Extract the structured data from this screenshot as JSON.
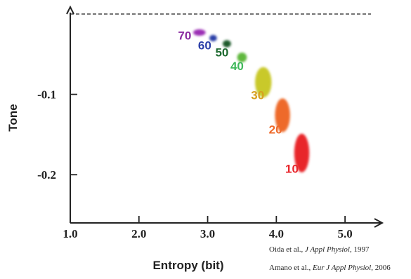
{
  "chart_data": {
    "type": "scatter",
    "title": "",
    "xlabel": "Entropy (bit)",
    "ylabel": "Tone",
    "xlim": [
      1.0,
      5.5
    ],
    "ylim": [
      -0.26,
      0.0
    ],
    "x_ticks": [
      "1.0",
      "2.0",
      "3.0",
      "4.0",
      "5.0"
    ],
    "y_ticks": [
      "-0.1",
      "-0.2"
    ],
    "reference_line": {
      "y": 0.0,
      "style": "dashed"
    },
    "points": [
      {
        "label": "70",
        "x": 2.88,
        "y": -0.023,
        "rx": 0.09,
        "ry": 0.004,
        "color": "#9b2fb5",
        "label_color": "#8a2aa0"
      },
      {
        "label": "60",
        "x": 3.08,
        "y": -0.03,
        "rx": 0.055,
        "ry": 0.004,
        "color": "#2b3fa8",
        "label_color": "#2b3fa8"
      },
      {
        "label": "50",
        "x": 3.28,
        "y": -0.037,
        "rx": 0.06,
        "ry": 0.0045,
        "color": "#1e5a2a",
        "label_color": "#1e6a30"
      },
      {
        "label": "40",
        "x": 3.5,
        "y": -0.054,
        "rx": 0.07,
        "ry": 0.006,
        "color": "#5fb83c",
        "label_color": "#3fb85a"
      },
      {
        "label": "30",
        "x": 3.81,
        "y": -0.085,
        "rx": 0.12,
        "ry": 0.019,
        "color": "#c9c92a",
        "label_color": "#d7a020"
      },
      {
        "label": "20",
        "x": 4.09,
        "y": -0.126,
        "rx": 0.11,
        "ry": 0.021,
        "color": "#ee6a2a",
        "label_color": "#ee6a2a"
      },
      {
        "label": "10",
        "x": 4.37,
        "y": -0.173,
        "rx": 0.11,
        "ry": 0.024,
        "color": "#e8262c",
        "label_color": "#e8262c"
      }
    ]
  },
  "references": [
    {
      "authors": "Oida et al., ",
      "journal": "J Appl Physiol",
      "year": ", 1997"
    },
    {
      "authors": "Amano et al., ",
      "journal": "Eur J Appl Physiol",
      "year": ", 2006"
    }
  ]
}
